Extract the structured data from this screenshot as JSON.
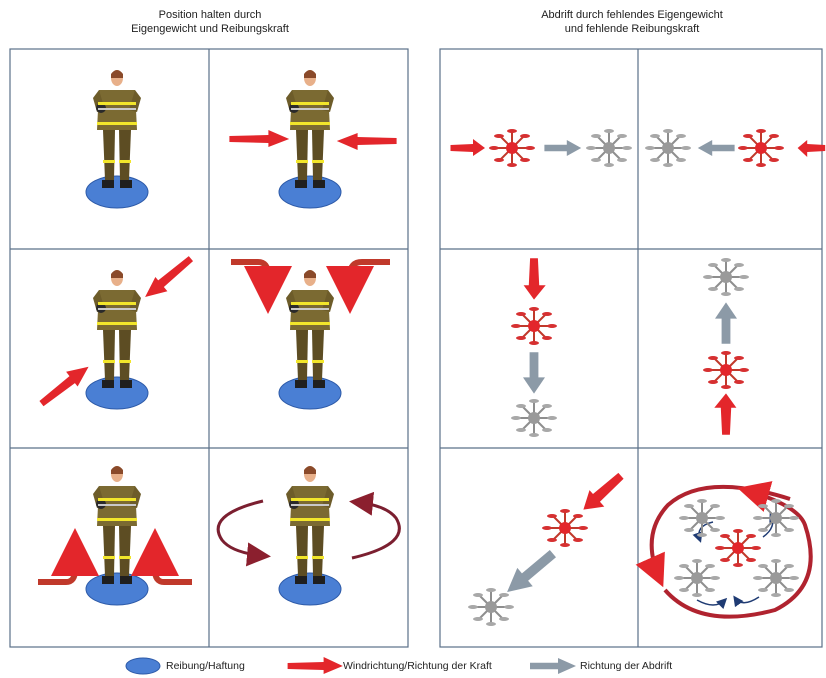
{
  "titles": {
    "left_line1": "Position halten durch",
    "left_line2": "Eigengewicht und Reibungskraft",
    "right_line1": "Abdrift durch fehlendes Eigengewicht",
    "right_line2": "und fehlende Reibungskraft"
  },
  "legend": {
    "friction": "Reibung/Haftung",
    "wind": "Windrichtung/Richtung der Kraft",
    "drift": "Richtung der Abdrift"
  },
  "colors": {
    "wind_red": "#e3262b",
    "drift_gray": "#8c9aa7",
    "friction_blue": "#4a7fd4",
    "grid_line": "#5b7089"
  }
}
